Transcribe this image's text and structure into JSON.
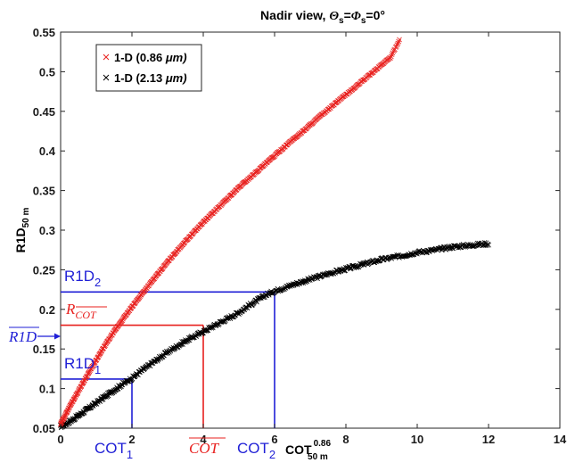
{
  "chart_data": {
    "type": "scatter",
    "title": "Nadir view, Θs=Φs=0°",
    "title_parts": {
      "prefix": "Nadir view, ",
      "theta": "Θ",
      "phi": "Φ",
      "sub": "s",
      "eq": "=",
      "deg": "=0°"
    },
    "xlabel": {
      "main": "COT",
      "sup": "0.86",
      "sub": "50 m"
    },
    "ylabel": {
      "main": "R1D",
      "sub": "50 m"
    },
    "xlim": [
      0,
      14
    ],
    "ylim": [
      0.05,
      0.55
    ],
    "xticks": [
      "0",
      "2",
      "4",
      "6",
      "8",
      "10",
      "12",
      "14"
    ],
    "yticks": [
      "0.05",
      "0.1",
      "0.15",
      "0.2",
      "0.25",
      "0.3",
      "0.35",
      "0.4",
      "0.45",
      "0.5",
      "0.55"
    ],
    "grid": false,
    "legend_position": "top-left",
    "series": [
      {
        "name": "1-D (0.86 μm)",
        "label_main": "1-D (0.86 ",
        "label_unit": "μm)",
        "color": "#e8201e",
        "marker": "x",
        "x": [
          0.0,
          0.25,
          0.5,
          0.75,
          1.0,
          1.25,
          1.5,
          1.75,
          2.0,
          2.25,
          2.5,
          2.75,
          3.0,
          3.25,
          3.5,
          3.75,
          4.0,
          4.25,
          4.5,
          4.75,
          5.0,
          5.25,
          5.5,
          5.75,
          6.0,
          6.25,
          6.5,
          6.75,
          7.0,
          7.25,
          7.5,
          7.75,
          8.0,
          8.25,
          8.5,
          8.75,
          9.0,
          9.25,
          9.5
        ],
        "y": [
          0.055,
          0.077,
          0.097,
          0.117,
          0.136,
          0.155,
          0.172,
          0.188,
          0.203,
          0.218,
          0.232,
          0.246,
          0.26,
          0.273,
          0.286,
          0.298,
          0.31,
          0.321,
          0.332,
          0.343,
          0.354,
          0.364,
          0.374,
          0.384,
          0.394,
          0.404,
          0.414,
          0.423,
          0.433,
          0.443,
          0.452,
          0.462,
          0.471,
          0.48,
          0.49,
          0.499,
          0.509,
          0.518,
          0.54
        ]
      },
      {
        "name": "1-D  (2.13 μm)",
        "label_main": "1-D  (2.13 ",
        "label_unit": "μm)",
        "color": "#000000",
        "marker": "x",
        "x": [
          0.0,
          0.25,
          0.5,
          0.75,
          1.0,
          1.25,
          1.5,
          1.75,
          2.0,
          2.25,
          2.5,
          2.75,
          3.0,
          3.25,
          3.5,
          3.75,
          4.0,
          4.25,
          4.5,
          4.75,
          5.0,
          5.25,
          5.5,
          5.75,
          6.0,
          6.5,
          7.0,
          7.5,
          8.0,
          8.5,
          9.0,
          9.5,
          10.0,
          10.5,
          11.0,
          11.5,
          12.0
        ],
        "y": [
          0.052,
          0.058,
          0.066,
          0.074,
          0.082,
          0.09,
          0.098,
          0.106,
          0.113,
          0.122,
          0.13,
          0.138,
          0.146,
          0.153,
          0.16,
          0.166,
          0.172,
          0.178,
          0.184,
          0.19,
          0.196,
          0.204,
          0.211,
          0.218,
          0.223,
          0.231,
          0.238,
          0.245,
          0.251,
          0.257,
          0.263,
          0.267,
          0.272,
          0.275,
          0.279,
          0.281,
          0.283
        ]
      }
    ],
    "annotations": [
      {
        "id": "r1d2",
        "text": "R1D",
        "sub": "2",
        "color": "#1f1fd6",
        "y": 0.222,
        "x_end": 6.0
      },
      {
        "id": "rcot",
        "text": "R",
        "sub": "COT",
        "color": "#e8201e",
        "y": 0.18,
        "x_end": 4.0
      },
      {
        "id": "r1dbar",
        "text": "R1D",
        "color": "#1f1fd6",
        "y": 0.166
      },
      {
        "id": "r1d1",
        "text": "R1D",
        "sub": "1",
        "color": "#1f1fd6",
        "y": 0.112,
        "x_end": 2.0
      },
      {
        "id": "cot1",
        "text": "COT",
        "sub": "1",
        "color": "#1f1fd6",
        "x": 2.0
      },
      {
        "id": "cotbar",
        "text": "COT",
        "color": "#e8201e",
        "x": 4.0
      },
      {
        "id": "cot2",
        "text": "COT",
        "sub": "2",
        "color": "#1f1fd6",
        "x": 6.0
      }
    ]
  }
}
